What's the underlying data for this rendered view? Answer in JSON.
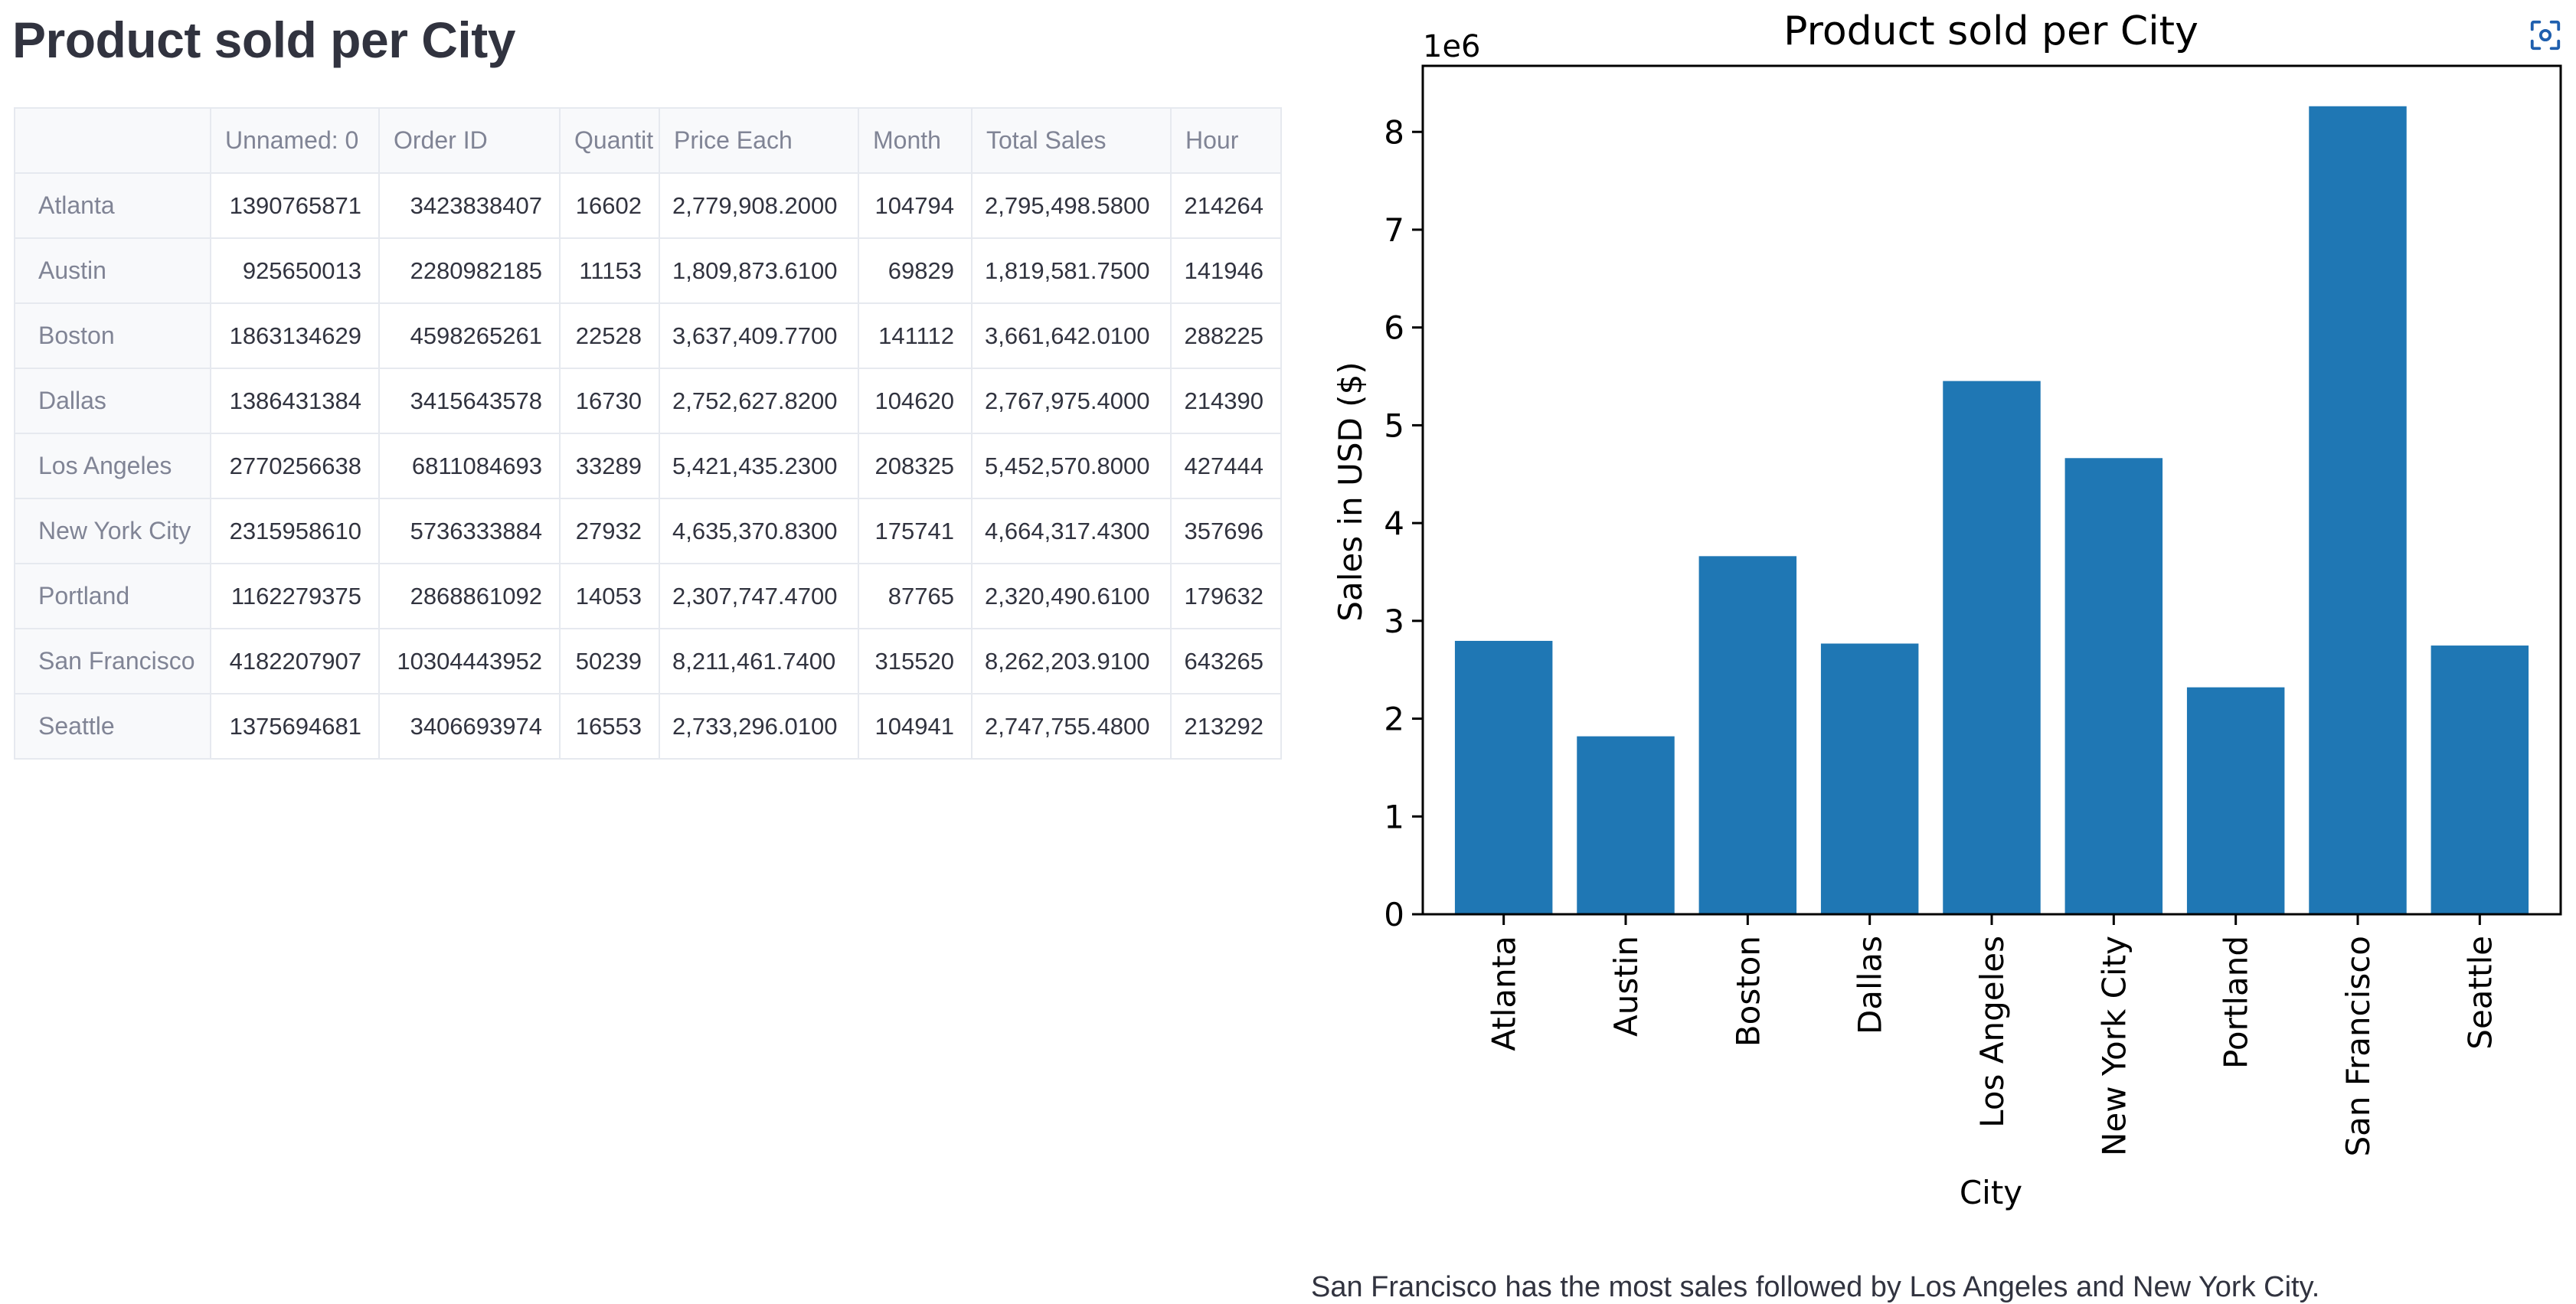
{
  "page": {
    "title": "Product sold per City",
    "caption": "San Francisco has the most sales followed by Los Angeles and New York City."
  },
  "table": {
    "columns": [
      "",
      "Unnamed: 0",
      "Order ID",
      "Quantit",
      "Price Each",
      "Month",
      "Total Sales",
      "Hour"
    ],
    "rows": [
      {
        "city": "Atlanta",
        "values": [
          "1390765871",
          "3423838407",
          "16602",
          "2,779,908.2000",
          "104794",
          "2,795,498.5800",
          "214264"
        ]
      },
      {
        "city": "Austin",
        "values": [
          "925650013",
          "2280982185",
          "11153",
          "1,809,873.6100",
          "69829",
          "1,819,581.7500",
          "141946"
        ]
      },
      {
        "city": "Boston",
        "values": [
          "1863134629",
          "4598265261",
          "22528",
          "3,637,409.7700",
          "141112",
          "3,661,642.0100",
          "288225"
        ]
      },
      {
        "city": "Dallas",
        "values": [
          "1386431384",
          "3415643578",
          "16730",
          "2,752,627.8200",
          "104620",
          "2,767,975.4000",
          "214390"
        ]
      },
      {
        "city": "Los Angeles",
        "values": [
          "2770256638",
          "6811084693",
          "33289",
          "5,421,435.2300",
          "208325",
          "5,452,570.8000",
          "427444"
        ]
      },
      {
        "city": "New York City",
        "values": [
          "2315958610",
          "5736333884",
          "27932",
          "4,635,370.8300",
          "175741",
          "4,664,317.4300",
          "357696"
        ]
      },
      {
        "city": "Portland",
        "values": [
          "1162279375",
          "2868861092",
          "14053",
          "2,307,747.4700",
          "87765",
          "2,320,490.6100",
          "179632"
        ]
      },
      {
        "city": "San Francisco",
        "values": [
          "4182207907",
          "10304443952",
          "50239",
          "8,211,461.7400",
          "315520",
          "8,262,203.9100",
          "643265"
        ]
      },
      {
        "city": "Seattle",
        "values": [
          "1375694681",
          "3406693974",
          "16553",
          "2,733,296.0100",
          "104941",
          "2,747,755.4800",
          "213292"
        ]
      }
    ]
  },
  "chart_data": {
    "type": "bar",
    "title": "Product sold per City",
    "xlabel": "City",
    "ylabel": "Sales in USD ($)",
    "offset_label": "1e6",
    "categories": [
      "Atlanta",
      "Austin",
      "Boston",
      "Dallas",
      "Los Angeles",
      "New York City",
      "Portland",
      "San Francisco",
      "Seattle"
    ],
    "values": [
      2795498.58,
      1819581.75,
      3661642.01,
      2767975.4,
      5452570.8,
      4664317.43,
      2320490.61,
      8262203.91,
      2747755.48
    ],
    "yticks": [
      0,
      1,
      2,
      3,
      4,
      5,
      6,
      7,
      8
    ],
    "ylim": [
      0,
      8675314.1
    ],
    "tick_scale": 1000000,
    "bar_color": "#1f77b4",
    "grid": false
  },
  "icons": {
    "fullscreen": "fullscreen-icon"
  }
}
